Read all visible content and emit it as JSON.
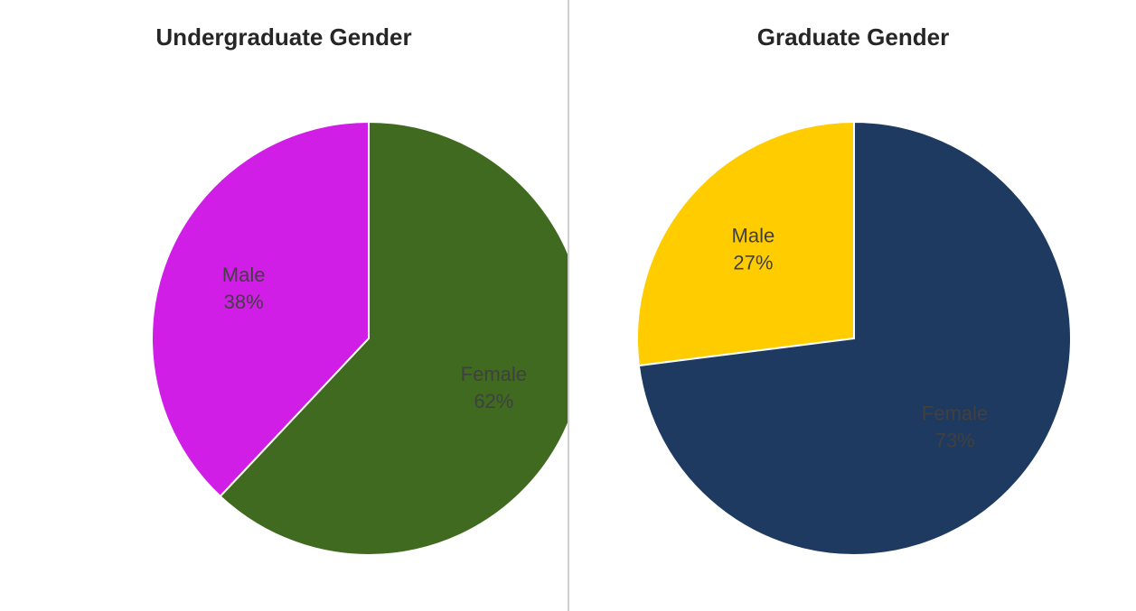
{
  "chart_data": [
    {
      "type": "pie",
      "title": "Undergraduate Gender",
      "categories": [
        "Male",
        "Female"
      ],
      "values": [
        38,
        62
      ],
      "value_labels": [
        "38%",
        "62%"
      ],
      "colors": [
        "#d11ee6",
        "#3f6a1f"
      ]
    },
    {
      "type": "pie",
      "title": "Graduate Gender",
      "categories": [
        "Male",
        "Female"
      ],
      "values": [
        27,
        73
      ],
      "value_labels": [
        "27%",
        "73%"
      ],
      "colors": [
        "#ffcc00",
        "#1f3a60"
      ]
    }
  ]
}
